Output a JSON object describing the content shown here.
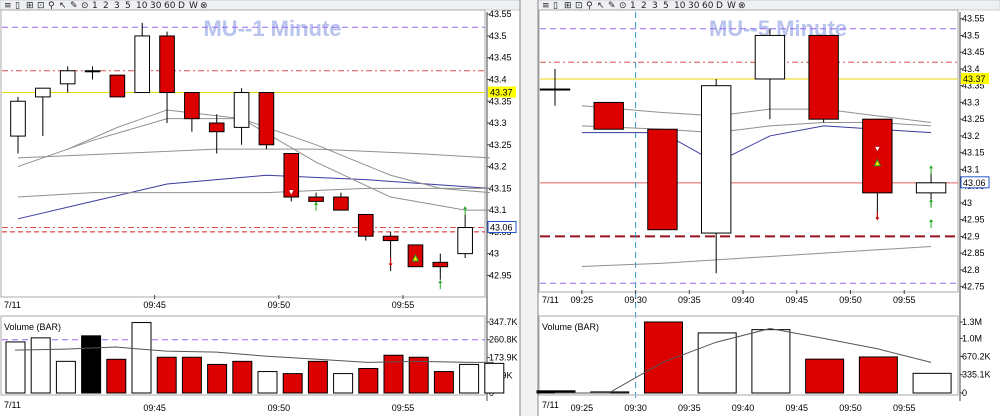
{
  "toolbar": {
    "items": [
      "≡",
      "▯",
      "⊞",
      "⊡",
      "⚲",
      "↖",
      "✎",
      "⊙",
      "1",
      "2",
      "3",
      "5",
      "10",
      "30",
      "60",
      "D",
      "W",
      "⊗"
    ]
  },
  "colors": {
    "down": "#dd0000",
    "up": "#ffffff",
    "volume_special": "#000000",
    "last_marker": "#ffff00",
    "dash_red": "#e05050",
    "purple": "#9966ee",
    "blue_ma": "#3a3aa0",
    "gray_ma": "#909090",
    "axis_box": "#2255cc"
  },
  "chart_data": [
    {
      "id": "left",
      "type": "candlestick",
      "title": "MU--1 Minute",
      "ylim": [
        42.905,
        43.555
      ],
      "y_ticks": [
        42.95,
        43.0,
        43.05,
        43.1,
        43.15,
        43.2,
        43.25,
        43.3,
        43.35,
        43.4,
        43.45,
        43.5,
        43.55
      ],
      "y_tick_labels": [
        "42.95",
        "43",
        "43.05",
        "43.1",
        "43.15",
        "43.2",
        "43.25",
        "43.3",
        "43.35",
        "43.4",
        "43.45",
        "43.5",
        "43.55"
      ],
      "x_range": [
        0,
        19
      ],
      "x_ticks": [
        {
          "x": 5.5,
          "label": "09:45"
        },
        {
          "x": 10.5,
          "label": "09:50"
        },
        {
          "x": 15.5,
          "label": "09:55"
        }
      ],
      "date_label": "7/11",
      "last_price": 43.37,
      "last_price_label": "43.37",
      "current_price": 43.06,
      "current_price_label": "43.06",
      "hlines": [
        {
          "y": 43.52,
          "style": "purple-dash"
        },
        {
          "y": 43.42,
          "style": "red-dashdot"
        },
        {
          "y": 43.37,
          "style": "yellow"
        },
        {
          "y": 43.06,
          "style": "red-dashdot"
        },
        {
          "y": 43.05,
          "style": "red-dash"
        }
      ],
      "candles": [
        {
          "x": 0,
          "o": 43.27,
          "h": 43.36,
          "l": 43.23,
          "c": 43.35
        },
        {
          "x": 1,
          "o": 43.36,
          "h": 43.38,
          "l": 43.27,
          "c": 43.38
        },
        {
          "x": 2,
          "o": 43.39,
          "h": 43.43,
          "l": 43.37,
          "c": 43.42
        },
        {
          "x": 3,
          "o": 43.42,
          "h": 43.43,
          "l": 43.4,
          "c": 43.42
        },
        {
          "x": 4,
          "o": 43.41,
          "h": 43.41,
          "l": 43.36,
          "c": 43.36
        },
        {
          "x": 5,
          "o": 43.37,
          "h": 43.53,
          "l": 43.37,
          "c": 43.5
        },
        {
          "x": 6,
          "o": 43.5,
          "h": 43.51,
          "l": 43.3,
          "c": 43.37
        },
        {
          "x": 7,
          "o": 43.37,
          "h": 43.37,
          "l": 43.28,
          "c": 43.31
        },
        {
          "x": 8,
          "o": 43.3,
          "h": 43.32,
          "l": 43.23,
          "c": 43.28
        },
        {
          "x": 9,
          "o": 43.29,
          "h": 43.38,
          "l": 43.25,
          "c": 43.37
        },
        {
          "x": 10,
          "o": 43.37,
          "h": 43.37,
          "l": 43.24,
          "c": 43.25
        },
        {
          "x": 11,
          "o": 43.23,
          "h": 43.23,
          "l": 43.12,
          "c": 43.13
        },
        {
          "x": 12,
          "o": 43.13,
          "h": 43.14,
          "l": 43.11,
          "c": 43.12
        },
        {
          "x": 13,
          "o": 43.13,
          "h": 43.14,
          "l": 43.1,
          "c": 43.1
        },
        {
          "x": 14,
          "o": 43.09,
          "h": 43.09,
          "l": 43.03,
          "c": 43.04
        },
        {
          "x": 15,
          "o": 43.04,
          "h": 43.05,
          "l": 42.96,
          "c": 43.03
        },
        {
          "x": 16,
          "o": 43.02,
          "h": 43.02,
          "l": 42.97,
          "c": 42.97
        },
        {
          "x": 17,
          "o": 42.98,
          "h": 43.0,
          "l": 42.94,
          "c": 42.97
        },
        {
          "x": 18,
          "o": 43.0,
          "h": 43.09,
          "l": 42.99,
          "c": 43.06
        }
      ],
      "ma": [
        {
          "color": "blue",
          "points": [
            [
              0,
              43.08
            ],
            [
              3,
              43.12
            ],
            [
              6,
              43.16
            ],
            [
              10,
              43.18
            ],
            [
              14,
              43.17
            ],
            [
              19,
              43.15
            ]
          ]
        },
        {
          "color": "gray",
          "points": [
            [
              0,
              43.22
            ],
            [
              4,
              43.23
            ],
            [
              8,
              43.24
            ],
            [
              12,
              43.24
            ],
            [
              16,
              43.23
            ],
            [
              19,
              43.22
            ]
          ]
        },
        {
          "color": "gray",
          "points": [
            [
              0,
              43.13
            ],
            [
              3,
              43.14
            ],
            [
              6,
              43.14
            ],
            [
              10,
              43.14
            ],
            [
              14,
              43.15
            ],
            [
              19,
              43.15
            ]
          ]
        },
        {
          "color": "gray",
          "points": [
            [
              0,
              43.2
            ],
            [
              3,
              43.26
            ],
            [
              6,
              43.31
            ],
            [
              9,
              43.31
            ],
            [
              12,
              43.21
            ],
            [
              15,
              43.13
            ],
            [
              18,
              43.1
            ],
            [
              19,
              43.1
            ]
          ]
        },
        {
          "color": "gray",
          "points": [
            [
              2,
              43.24
            ],
            [
              4,
              43.29
            ],
            [
              6,
              43.33
            ],
            [
              9,
              43.31
            ],
            [
              12,
              43.25
            ],
            [
              15,
              43.18
            ],
            [
              17,
              43.15
            ],
            [
              19,
              43.14
            ]
          ]
        }
      ],
      "markers": [
        {
          "x": 11,
          "y": 43.14,
          "shape": "tri-down-open"
        },
        {
          "x": 12,
          "y": 43.11,
          "shape": "arrow-up"
        },
        {
          "x": 15,
          "y": 42.98,
          "shape": "arrow-down"
        },
        {
          "x": 16,
          "y": 42.99,
          "shape": "tri-up"
        },
        {
          "x": 17,
          "y": 42.93,
          "shape": "arrow-up"
        },
        {
          "x": 18,
          "y": 43.1,
          "shape": "arrow-up"
        }
      ],
      "volume": {
        "title": "Volume (BAR)",
        "ylim": [
          0,
          347700
        ],
        "y_tick_labels": [
          "347.7K",
          "260.8K",
          "173.9K",
          "86.9K",
          "0"
        ],
        "y_ticks": [
          347700,
          260800,
          173900,
          86900,
          0
        ],
        "hline_purple": 260800,
        "bars": [
          {
            "x": 0,
            "v": 250000,
            "kind": "up"
          },
          {
            "x": 1,
            "v": 270000,
            "kind": "up"
          },
          {
            "x": 2,
            "v": 155000,
            "kind": "up"
          },
          {
            "x": 3,
            "v": 280000,
            "kind": "black"
          },
          {
            "x": 4,
            "v": 165000,
            "kind": "down"
          },
          {
            "x": 5,
            "v": 345000,
            "kind": "up"
          },
          {
            "x": 6,
            "v": 175000,
            "kind": "down"
          },
          {
            "x": 7,
            "v": 175000,
            "kind": "down"
          },
          {
            "x": 8,
            "v": 140000,
            "kind": "down"
          },
          {
            "x": 9,
            "v": 155000,
            "kind": "down"
          },
          {
            "x": 10,
            "v": 105000,
            "kind": "up"
          },
          {
            "x": 11,
            "v": 95000,
            "kind": "down"
          },
          {
            "x": 12,
            "v": 155000,
            "kind": "down"
          },
          {
            "x": 13,
            "v": 95000,
            "kind": "up"
          },
          {
            "x": 14,
            "v": 120000,
            "kind": "down"
          },
          {
            "x": 15,
            "v": 185000,
            "kind": "down"
          },
          {
            "x": 16,
            "v": 175000,
            "kind": "down"
          },
          {
            "x": 17,
            "v": 105000,
            "kind": "down"
          },
          {
            "x": 18,
            "v": 140000,
            "kind": "up"
          },
          {
            "x": 19,
            "v": 145000,
            "kind": "up"
          }
        ],
        "line": [
          [
            0,
            210000
          ],
          [
            2,
            215000
          ],
          [
            4,
            225000
          ],
          [
            6,
            205000
          ],
          [
            8,
            200000
          ],
          [
            10,
            180000
          ],
          [
            12,
            165000
          ],
          [
            14,
            150000
          ],
          [
            16,
            155000
          ],
          [
            18,
            150000
          ],
          [
            19,
            150000
          ]
        ]
      }
    },
    {
      "id": "right",
      "type": "candlestick",
      "title": "MU--5 Minute",
      "ylim": [
        42.74,
        43.57
      ],
      "y_ticks": [
        42.75,
        42.8,
        42.85,
        42.9,
        42.95,
        43.0,
        43.05,
        43.1,
        43.15,
        43.2,
        43.25,
        43.3,
        43.35,
        43.4,
        43.45,
        43.5,
        43.55
      ],
      "y_tick_labels": [
        "42.75",
        "42.8",
        "42.85",
        "42.9",
        "42.95",
        "43",
        "43.05",
        "43.1",
        "43.15",
        "43.2",
        "43.25",
        "43.3",
        "43.35",
        "43.4",
        "43.45",
        "43.5",
        "43.55"
      ],
      "x_range": [
        0,
        7.5
      ],
      "x_ticks": [
        {
          "x": 0.5,
          "label": "09:25"
        },
        {
          "x": 1.5,
          "label": "09:30"
        },
        {
          "x": 2.5,
          "label": "09:35"
        },
        {
          "x": 3.5,
          "label": "09:40"
        },
        {
          "x": 4.5,
          "label": "09:45"
        },
        {
          "x": 5.5,
          "label": "09:50"
        },
        {
          "x": 6.5,
          "label": "09:55"
        }
      ],
      "date_label": "7/11",
      "last_price": 43.37,
      "last_price_label": "43.37",
      "current_price": 43.06,
      "current_price_label": "43.06",
      "session_line_x": 1.5,
      "hlines": [
        {
          "y": 43.52,
          "style": "purple-dash"
        },
        {
          "y": 43.42,
          "style": "red-dashdot"
        },
        {
          "y": 43.37,
          "style": "yellow"
        },
        {
          "y": 43.06,
          "style": "red-thin"
        },
        {
          "y": 42.9,
          "style": "darkred-dash"
        },
        {
          "y": 42.76,
          "style": "purple-dash"
        }
      ],
      "candles": [
        {
          "x": 0,
          "o": 43.34,
          "h": 43.4,
          "l": 43.29,
          "c": 43.34
        },
        {
          "x": 1,
          "o": 43.3,
          "h": 43.3,
          "l": 43.22,
          "c": 43.22
        },
        {
          "x": 2,
          "o": 43.22,
          "h": 43.22,
          "l": 42.92,
          "c": 42.92
        },
        {
          "x": 3,
          "o": 42.91,
          "h": 43.37,
          "l": 42.79,
          "c": 43.35
        },
        {
          "x": 4,
          "o": 43.37,
          "h": 43.52,
          "l": 43.25,
          "c": 43.5
        },
        {
          "x": 5,
          "o": 43.5,
          "h": 43.5,
          "l": 43.24,
          "c": 43.25
        },
        {
          "x": 6,
          "o": 43.25,
          "h": 43.25,
          "l": 42.95,
          "c": 43.03
        },
        {
          "x": 7,
          "o": 43.03,
          "h": 43.09,
          "l": 42.99,
          "c": 43.06
        }
      ],
      "ma": [
        {
          "color": "blue",
          "points": [
            [
              0.5,
              43.21
            ],
            [
              2,
              43.21
            ],
            [
              3,
              43.12
            ],
            [
              4,
              43.2
            ],
            [
              5,
              43.23
            ],
            [
              6,
              43.22
            ],
            [
              7,
              43.21
            ]
          ]
        },
        {
          "color": "gray",
          "points": [
            [
              0.5,
              43.29
            ],
            [
              2,
              43.27
            ],
            [
              3,
              43.26
            ],
            [
              4,
              43.28
            ],
            [
              5,
              43.28
            ],
            [
              6,
              43.26
            ],
            [
              7,
              43.24
            ]
          ]
        },
        {
          "color": "gray",
          "points": [
            [
              0.5,
              43.23
            ],
            [
              2,
              43.22
            ],
            [
              3,
              43.21
            ],
            [
              4,
              43.23
            ],
            [
              5,
              43.24
            ],
            [
              6,
              43.24
            ],
            [
              7,
              43.23
            ]
          ]
        },
        {
          "color": "gray",
          "points": [
            [
              0.5,
              42.81
            ],
            [
              2,
              42.82
            ],
            [
              4,
              42.84
            ],
            [
              6,
              42.86
            ],
            [
              7,
              42.87
            ]
          ]
        }
      ],
      "markers": [
        {
          "x": 6,
          "y": 43.16,
          "shape": "tri-down-open"
        },
        {
          "x": 6,
          "y": 43.12,
          "shape": "tri-up"
        },
        {
          "x": 6,
          "y": 42.96,
          "shape": "arrow-down"
        },
        {
          "x": 7,
          "y": 43.1,
          "shape": "arrow-up"
        },
        {
          "x": 7,
          "y": 43.0,
          "shape": "arrow-up"
        },
        {
          "x": 7,
          "y": 42.94,
          "shape": "arrow-up"
        }
      ],
      "volume": {
        "title": "Volume (BAR)",
        "ylim": [
          0,
          1300000
        ],
        "y_tick_labels": [
          "1.3M",
          "1.0M",
          "670.2K",
          "335.1K",
          "0"
        ],
        "y_ticks": [
          1300000,
          1000000,
          670200,
          335100,
          0
        ],
        "bars": [
          {
            "x": 0,
            "v": 40000,
            "kind": "black"
          },
          {
            "x": 1,
            "v": 20000,
            "kind": "up"
          },
          {
            "x": 2,
            "v": 1300000,
            "kind": "down"
          },
          {
            "x": 3,
            "v": 1100000,
            "kind": "up"
          },
          {
            "x": 4,
            "v": 1160000,
            "kind": "up"
          },
          {
            "x": 5,
            "v": 620000,
            "kind": "down"
          },
          {
            "x": 6,
            "v": 660000,
            "kind": "down"
          },
          {
            "x": 7,
            "v": 360000,
            "kind": "up"
          }
        ],
        "line": [
          [
            0,
            0
          ],
          [
            1,
            0
          ],
          [
            2,
            560000
          ],
          [
            3,
            930000
          ],
          [
            4,
            1180000
          ],
          [
            5,
            1000000
          ],
          [
            6,
            810000
          ],
          [
            7,
            560000
          ]
        ]
      }
    }
  ]
}
